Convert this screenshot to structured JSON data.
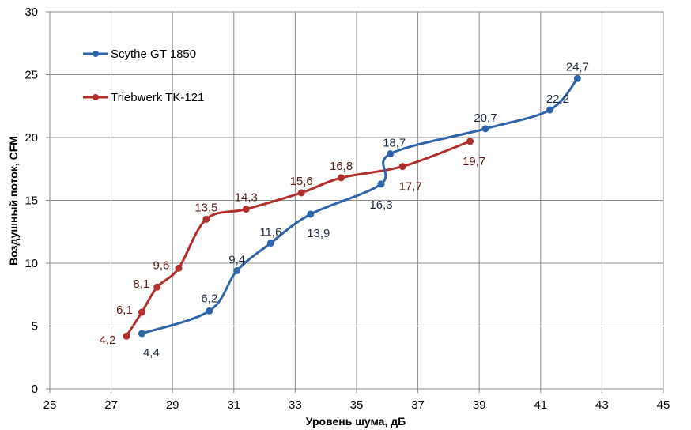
{
  "chart_data": {
    "type": "line",
    "title": "",
    "xlabel": "Уровень шума, дБ",
    "ylabel": "Воздушный поток, CFM",
    "xlim": [
      25,
      45
    ],
    "ylim": [
      0,
      30
    ],
    "x_ticks": [
      "25",
      "27",
      "29",
      "31",
      "33",
      "35",
      "37",
      "39",
      "41",
      "43",
      "45"
    ],
    "y_ticks": [
      "0",
      "5",
      "10",
      "15",
      "20",
      "25",
      "30"
    ],
    "grid": true,
    "legend_position": "top-left",
    "series": [
      {
        "name": "Scythe GT 1850",
        "color": "#2e64a8",
        "points": [
          {
            "x": 28.0,
            "y": 4.4,
            "label": "4,4"
          },
          {
            "x": 30.2,
            "y": 6.2,
            "label": "6,2"
          },
          {
            "x": 31.1,
            "y": 9.4,
            "label": "9,4"
          },
          {
            "x": 32.2,
            "y": 11.6,
            "label": "11,6"
          },
          {
            "x": 33.5,
            "y": 13.9,
            "label": "13,9"
          },
          {
            "x": 35.8,
            "y": 16.3,
            "label": "16,3"
          },
          {
            "x": 36.1,
            "y": 18.7,
            "label": "18,7"
          },
          {
            "x": 39.2,
            "y": 20.7,
            "label": "20,7"
          },
          {
            "x": 41.3,
            "y": 22.2,
            "label": "22,2"
          },
          {
            "x": 42.2,
            "y": 24.7,
            "label": "24,7"
          }
        ]
      },
      {
        "name": "Triebwerk TK-121",
        "color": "#b22e2b",
        "label_color": "#5a1a14",
        "points": [
          {
            "x": 27.5,
            "y": 4.2,
            "label": "4,2"
          },
          {
            "x": 28.0,
            "y": 6.1,
            "label": "6,1"
          },
          {
            "x": 28.5,
            "y": 8.1,
            "label": "8,1"
          },
          {
            "x": 29.2,
            "y": 9.6,
            "label": "9,6"
          },
          {
            "x": 30.1,
            "y": 13.5,
            "label": "13,5"
          },
          {
            "x": 31.4,
            "y": 14.3,
            "label": "14,3"
          },
          {
            "x": 33.2,
            "y": 15.6,
            "label": "15,6"
          },
          {
            "x": 34.5,
            "y": 16.8,
            "label": "16,8"
          },
          {
            "x": 36.5,
            "y": 17.7,
            "label": "17,7"
          },
          {
            "x": 38.7,
            "y": 19.7,
            "label": "19,7"
          }
        ]
      }
    ]
  }
}
